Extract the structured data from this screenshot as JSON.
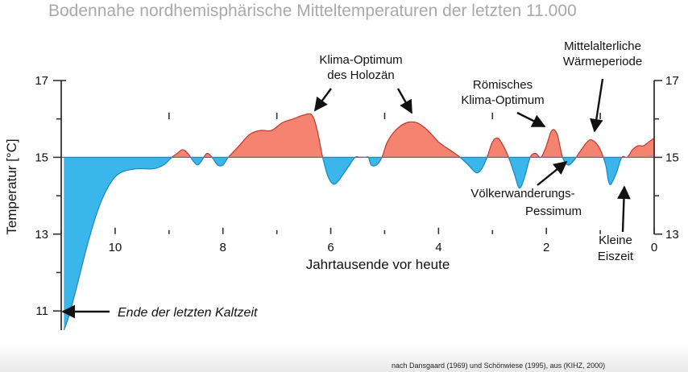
{
  "title": "Bodennahe nordhemisphärische Mitteltemperaturen der letzten 11.000",
  "source": "nach Dansgaard (1969) und Schönwiese (1995), aus (KIHZ, 2000)",
  "chart_data": {
    "type": "area",
    "title": "Bodennahe nordhemisphärische Mitteltemperaturen der letzten 11.000",
    "xlabel": "Jahrtausende vor heute",
    "ylabel": "Temperatur [°C]",
    "xlim": [
      11,
      0
    ],
    "ylim": [
      10.5,
      17
    ],
    "baseline": 15,
    "x_ticks": [
      10,
      8,
      6,
      4,
      2,
      0
    ],
    "y_ticks_left": [
      17,
      15,
      13,
      11
    ],
    "y_ticks_right": [
      17,
      15,
      13
    ],
    "grid": false,
    "colors": {
      "warm": "#f4836f",
      "cold": "#3bb6ea",
      "warm_line": "#c0392b",
      "cold_line": "#1a86c4",
      "axis": "#333333"
    },
    "series": [
      {
        "x": [
          10.95,
          10.85,
          10.7,
          10.5,
          10.3,
          10.1,
          9.9,
          9.6,
          9.3,
          9.1,
          8.95,
          8.85,
          8.75,
          8.65,
          8.55,
          8.47,
          8.4,
          8.3,
          8.2,
          8.1,
          8.0,
          7.9,
          7.7,
          7.5,
          7.3,
          7.1,
          6.9,
          6.7,
          6.5,
          6.35,
          6.25,
          6.15,
          6.05,
          5.95,
          5.85,
          5.75,
          5.65,
          5.55,
          5.45,
          5.35,
          5.3,
          5.25,
          5.15,
          5.05,
          4.95,
          4.8,
          4.6,
          4.4,
          4.2,
          4.0,
          3.8,
          3.6,
          3.45,
          3.3,
          3.2,
          3.1,
          3.0,
          2.9,
          2.8,
          2.7,
          2.6,
          2.5,
          2.4,
          2.3,
          2.2,
          2.1,
          2.0,
          1.9,
          1.8,
          1.7,
          1.6,
          1.5,
          1.4,
          1.3,
          1.2,
          1.1,
          1.0,
          0.9,
          0.85,
          0.8,
          0.7,
          0.6,
          0.5,
          0.4,
          0.3,
          0.2,
          0.1,
          0.0
        ],
        "y": [
          10.5,
          10.9,
          11.7,
          12.8,
          13.7,
          14.3,
          14.6,
          14.7,
          14.7,
          14.8,
          15.0,
          15.1,
          15.2,
          15.1,
          14.9,
          14.8,
          14.9,
          15.1,
          15.0,
          14.8,
          14.8,
          15.0,
          15.3,
          15.6,
          15.7,
          15.7,
          15.9,
          16.0,
          16.1,
          16.1,
          15.7,
          15.0,
          14.5,
          14.3,
          14.4,
          14.6,
          14.8,
          15.0,
          15.0,
          15.0,
          15.0,
          14.8,
          14.8,
          15.0,
          15.4,
          15.7,
          15.9,
          15.9,
          15.7,
          15.4,
          15.2,
          15.0,
          14.8,
          14.6,
          14.7,
          15.0,
          15.4,
          15.5,
          15.3,
          15.0,
          14.6,
          14.2,
          14.5,
          15.0,
          15.1,
          15.0,
          15.3,
          15.7,
          15.6,
          15.0,
          14.8,
          14.9,
          15.1,
          15.3,
          15.45,
          15.4,
          15.2,
          14.8,
          14.4,
          14.3,
          14.6,
          15.0,
          15.0,
          15.2,
          15.3,
          15.3,
          15.4,
          15.5
        ]
      }
    ],
    "annotations": [
      {
        "lines": [
          "Klima-Optimum",
          "des Holozän"
        ],
        "x": 6.5,
        "y": 16.1
      },
      {
        "lines": [
          "Römisches",
          "Klima-Optimum"
        ],
        "x": 1.85,
        "y": 15.65
      },
      {
        "lines": [
          "Mittelalterliche",
          "Wärmeperiode"
        ],
        "x": 1.15,
        "y": 15.35
      },
      {
        "lines": [
          "Völkerwanderungs-",
          "Pessimum"
        ],
        "x": 1.6,
        "y": 14.75
      },
      {
        "lines": [
          "Kleine",
          "Eiszeit"
        ],
        "x": 0.6,
        "y": 14.3
      },
      {
        "lines": [
          "Ende der letzten Kaltzeit"
        ],
        "x": 10.95,
        "y": 10.5
      }
    ]
  }
}
